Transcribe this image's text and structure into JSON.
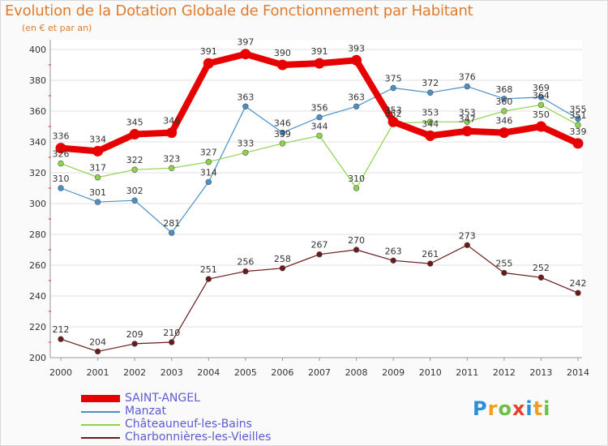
{
  "header": {
    "title": "Evolution de la Dotation Globale de Fonctionnement par Habitant",
    "subtitle": "(en € et par an)"
  },
  "logo": {
    "text": "Proxiti",
    "letters": [
      {
        "ch": "P",
        "color": "#2e8fd6"
      },
      {
        "ch": "r",
        "color": "#f0a020"
      },
      {
        "ch": "o",
        "color": "#6cc04a"
      },
      {
        "ch": "x",
        "color": "#e8402a"
      },
      {
        "ch": "i",
        "color": "#2e8fd6"
      },
      {
        "ch": "t",
        "color": "#f0a020"
      },
      {
        "ch": "i",
        "color": "#6cc04a"
      }
    ]
  },
  "chart_data": {
    "type": "line",
    "title": "Evolution de la Dotation Globale de Fonctionnement par Habitant",
    "subtitle": "(en € et par an)",
    "x": [
      "2000",
      "2001",
      "2002",
      "2003",
      "2004",
      "2005",
      "2006",
      "2007",
      "2008",
      "2009",
      "2010",
      "2011",
      "2012",
      "2013",
      "2014"
    ],
    "ylim": [
      200,
      400
    ],
    "yticks": [
      200,
      220,
      240,
      260,
      280,
      300,
      320,
      340,
      360,
      380,
      400
    ],
    "grid": "horizontal",
    "legend_position": "bottom-left",
    "series": [
      {
        "name": "SAINT-ANGEL",
        "color": "#e60000",
        "emphasis": true,
        "values": [
          336,
          334,
          345,
          346,
          391,
          397,
          390,
          391,
          393,
          353,
          344,
          347,
          346,
          350,
          339
        ]
      },
      {
        "name": "Manzat",
        "color": "#4a90c8",
        "values": [
          310,
          301,
          302,
          281,
          314,
          363,
          346,
          356,
          363,
          375,
          372,
          376,
          368,
          369,
          355
        ]
      },
      {
        "name": "Châteauneuf-les-Bains",
        "color": "#8ed44a",
        "values": [
          326,
          317,
          322,
          323,
          327,
          333,
          339,
          344,
          310,
          352,
          353,
          353,
          360,
          364,
          351
        ]
      },
      {
        "name": "Charbonnières-les-Vieilles",
        "color": "#6b1a1a",
        "values": [
          212,
          204,
          209,
          210,
          251,
          256,
          258,
          267,
          270,
          263,
          261,
          273,
          255,
          252,
          242
        ]
      }
    ]
  }
}
